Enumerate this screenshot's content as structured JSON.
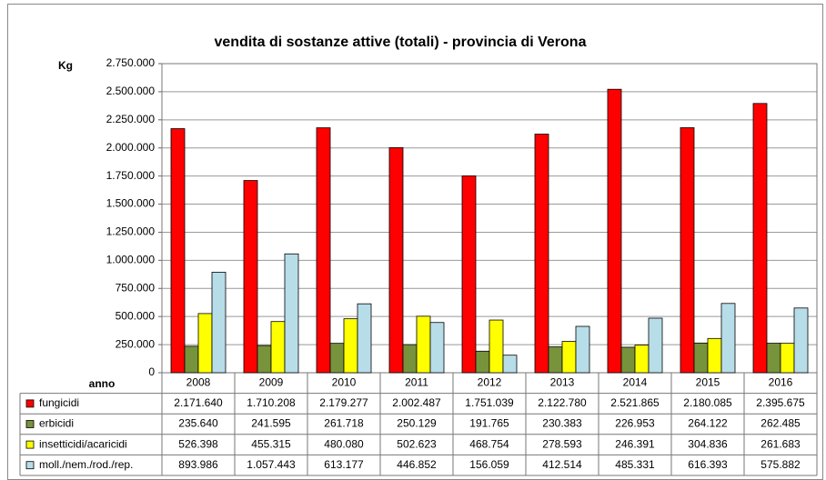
{
  "chart_data": {
    "type": "bar",
    "title": "vendita di sostanze attive (totali) - provincia di Verona",
    "y_label": "Kg",
    "x_label": "anno",
    "categories": [
      "2008",
      "2009",
      "2010",
      "2011",
      "2012",
      "2013",
      "2014",
      "2015",
      "2016"
    ],
    "series": [
      {
        "name": "fungicidi",
        "color": "#ff0000",
        "values": [
          2171640,
          1710208,
          2179277,
          2002487,
          1751039,
          2122780,
          2521865,
          2180085,
          2395675
        ],
        "value_labels": [
          "2.171.640",
          "1.710.208",
          "2.179.277",
          "2.002.487",
          "1.751.039",
          "2.122.780",
          "2.521.865",
          "2.180.085",
          "2.395.675"
        ]
      },
      {
        "name": "erbicidi",
        "color": "#77933c",
        "values": [
          235640,
          241595,
          261718,
          250129,
          191765,
          230383,
          226953,
          264122,
          262485
        ],
        "value_labels": [
          "235.640",
          "241.595",
          "261.718",
          "250.129",
          "191.765",
          "230.383",
          "226.953",
          "264.122",
          "262.485"
        ]
      },
      {
        "name": "insetticidi/acaricidi",
        "color": "#ffff00",
        "values": [
          526398,
          455315,
          480080,
          502623,
          468754,
          278593,
          246391,
          304836,
          261683
        ],
        "value_labels": [
          "526.398",
          "455.315",
          "480.080",
          "502.623",
          "468.754",
          "278.593",
          "246.391",
          "304.836",
          "261.683"
        ]
      },
      {
        "name": "moll./nem./rod./rep.",
        "color": "#b7dde8",
        "values": [
          893986,
          1057443,
          613177,
          446852,
          156059,
          412514,
          485331,
          616393,
          575882
        ],
        "value_labels": [
          "893.986",
          "1.057.443",
          "613.177",
          "446.852",
          "156.059",
          "412.514",
          "485.331",
          "616.393",
          "575.882"
        ]
      }
    ],
    "ylim": [
      0,
      2750000
    ],
    "yticks": [
      0,
      {
        "value": 250000,
        "label": "250.000"
      },
      {
        "value": 500000,
        "label": "500.000"
      },
      {
        "value": 750000,
        "label": "750.000"
      },
      {
        "value": 1000000,
        "label": "1.000.000"
      },
      {
        "value": 1250000,
        "label": "1.250.000"
      },
      {
        "value": 1500000,
        "label": "1.500.000"
      },
      {
        "value": 1750000,
        "label": "1.750.000"
      },
      {
        "value": 2000000,
        "label": "2.000.000"
      },
      {
        "value": 2250000,
        "label": "2.250.000"
      },
      {
        "value": 2500000,
        "label": "2.500.000"
      },
      {
        "value": 2750000,
        "label": "2.750.000"
      }
    ],
    "grid": true
  }
}
